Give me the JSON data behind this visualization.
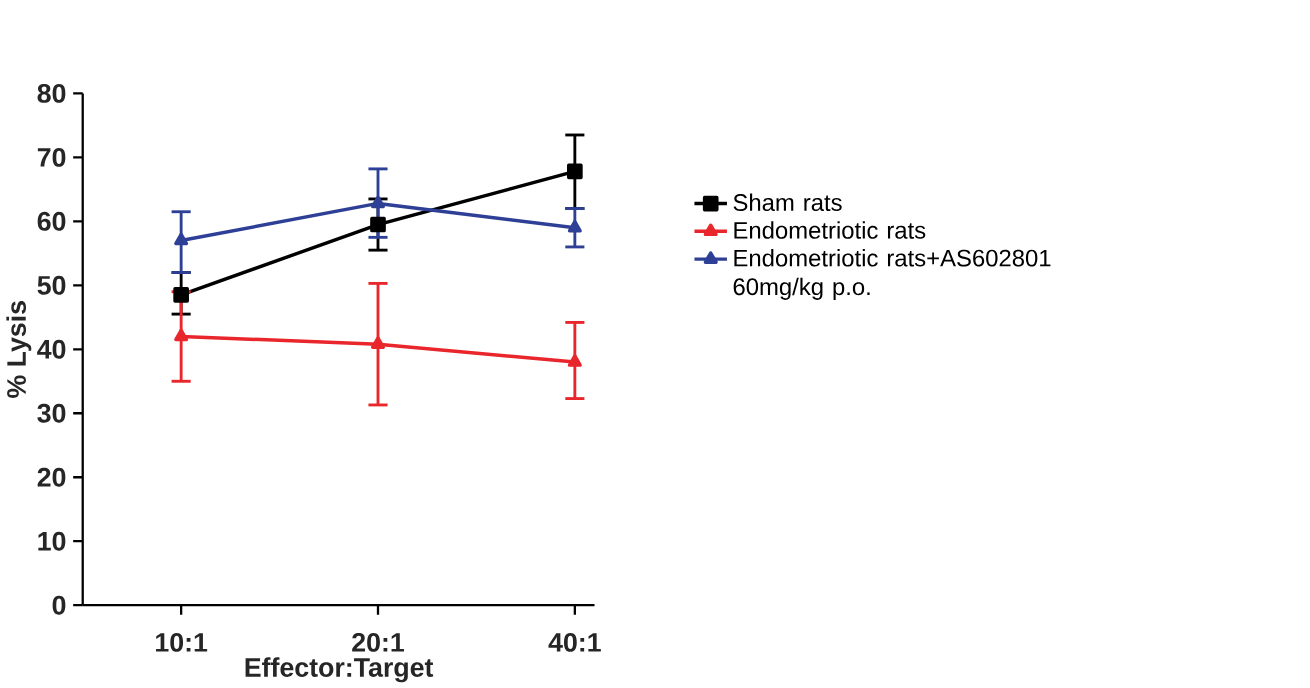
{
  "chart_data": {
    "type": "line",
    "xlabel": "Effector:Target",
    "ylabel": "% Lysis",
    "categories": [
      "10:1",
      "20:1",
      "40:1"
    ],
    "series": [
      {
        "name": "Sham rats",
        "color": "#000000",
        "marker": "square",
        "values": [
          48.5,
          59.5,
          67.8
        ],
        "errors": [
          [
            45.5,
            52
          ],
          [
            55.5,
            63.5
          ],
          [
            62,
            73.5
          ]
        ]
      },
      {
        "name": "Endometriotic rats",
        "color": "#e8262b",
        "marker": "triangle",
        "values": [
          42,
          40.8,
          38
        ],
        "errors": [
          [
            35,
            49
          ],
          [
            31.3,
            50.3
          ],
          [
            32.3,
            44.2
          ]
        ]
      },
      {
        "name": "Endometriotic rats+AS602801 60mg/kg p.o.",
        "color": "#2e3f96",
        "marker": "triangle",
        "values": [
          57,
          62.8,
          59
        ],
        "errors": [
          [
            52,
            61.5
          ],
          [
            57.5,
            68.2
          ],
          [
            56,
            62
          ]
        ]
      }
    ],
    "ylim": [
      0,
      80
    ],
    "yticks": [
      0,
      10,
      20,
      30,
      40,
      50,
      60,
      70,
      80
    ],
    "grid": false,
    "legend": "right",
    "line_style": "solid"
  }
}
